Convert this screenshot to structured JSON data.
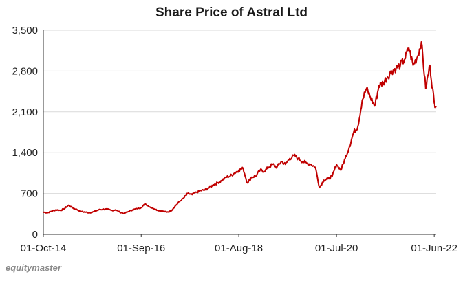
{
  "chart_data": {
    "type": "line",
    "title": "Share Price of Astral Ltd",
    "xlabel": "",
    "ylabel": "",
    "ylim": [
      0,
      3500
    ],
    "yticks": [
      0,
      700,
      1400,
      2100,
      2800,
      3500
    ],
    "ytick_labels": [
      "0",
      "700",
      "1,400",
      "2,100",
      "2,800",
      "3,500"
    ],
    "xlim": [
      "2014-10-01",
      "2022-06-15"
    ],
    "xticks": [
      {
        "date": "2014-10-01",
        "label": "01-Oct-14"
      },
      {
        "date": "2016-09-01",
        "label": "01-Sep-16"
      },
      {
        "date": "2018-08-01",
        "label": "01-Aug-18"
      },
      {
        "date": "2020-07-01",
        "label": "01-Jul-20"
      },
      {
        "date": "2022-06-01",
        "label": "01-Jun-22"
      }
    ],
    "grid": "horizontal",
    "legend": "none",
    "line_color": "#c00000",
    "series": [
      {
        "x": [
          "2014-10-01",
          "2014-11-01",
          "2014-12-01",
          "2015-01-01",
          "2015-02-01",
          "2015-03-01",
          "2015-04-01",
          "2015-05-01",
          "2015-06-01",
          "2015-07-01",
          "2015-08-01",
          "2015-09-01",
          "2015-10-01",
          "2015-11-01",
          "2015-12-01",
          "2016-01-01",
          "2016-02-01",
          "2016-03-01",
          "2016-04-01",
          "2016-05-01",
          "2016-06-01",
          "2016-07-01",
          "2016-08-01",
          "2016-09-01",
          "2016-10-01",
          "2016-11-01",
          "2016-12-01",
          "2017-01-01",
          "2017-02-01",
          "2017-03-01",
          "2017-04-01",
          "2017-05-01",
          "2017-06-01",
          "2017-07-01",
          "2017-08-01",
          "2017-09-01",
          "2017-10-01",
          "2017-11-01",
          "2017-12-01",
          "2018-01-01",
          "2018-02-01",
          "2018-03-01",
          "2018-04-01",
          "2018-05-01",
          "2018-06-01",
          "2018-07-01",
          "2018-08-01",
          "2018-09-01",
          "2018-10-01",
          "2018-11-01",
          "2018-12-01",
          "2019-01-01",
          "2019-02-01",
          "2019-03-01",
          "2019-04-01",
          "2019-05-01",
          "2019-06-01",
          "2019-07-01",
          "2019-08-01",
          "2019-09-01",
          "2019-10-01",
          "2019-11-01",
          "2019-12-01",
          "2020-01-01",
          "2020-02-01",
          "2020-03-01",
          "2020-04-01",
          "2020-05-01",
          "2020-06-01",
          "2020-07-01",
          "2020-08-01",
          "2020-09-01",
          "2020-10-01",
          "2020-11-01",
          "2020-12-01",
          "2021-01-01",
          "2021-02-01",
          "2021-03-01",
          "2021-04-01",
          "2021-05-01",
          "2021-06-01",
          "2021-07-01",
          "2021-08-01",
          "2021-09-01",
          "2021-10-01",
          "2021-11-01",
          "2021-12-01",
          "2022-01-01",
          "2022-02-01",
          "2022-03-01",
          "2022-04-01",
          "2022-05-01",
          "2022-06-01",
          "2022-06-15"
        ],
        "y": [
          380,
          370,
          400,
          420,
          410,
          440,
          500,
          450,
          420,
          390,
          380,
          370,
          390,
          420,
          430,
          430,
          410,
          420,
          380,
          360,
          390,
          420,
          440,
          460,
          520,
          470,
          440,
          410,
          400,
          380,
          400,
          480,
          560,
          620,
          700,
          680,
          720,
          750,
          760,
          800,
          850,
          880,
          920,
          980,
          1000,
          1050,
          1100,
          1130,
          880,
          980,
          1000,
          1100,
          1080,
          1150,
          1200,
          1150,
          1250,
          1200,
          1300,
          1350,
          1300,
          1250,
          1220,
          1200,
          1150,
          800,
          930,
          950,
          1000,
          1200,
          1100,
          1300,
          1500,
          1750,
          1850,
          2300,
          2500,
          2350,
          2200,
          2550,
          2600,
          2700,
          2800,
          2850,
          2900,
          3000,
          3200,
          2900,
          3050,
          3300,
          2500,
          2900,
          2250,
          2200
        ]
      }
    ]
  },
  "brand": "equitymaster"
}
